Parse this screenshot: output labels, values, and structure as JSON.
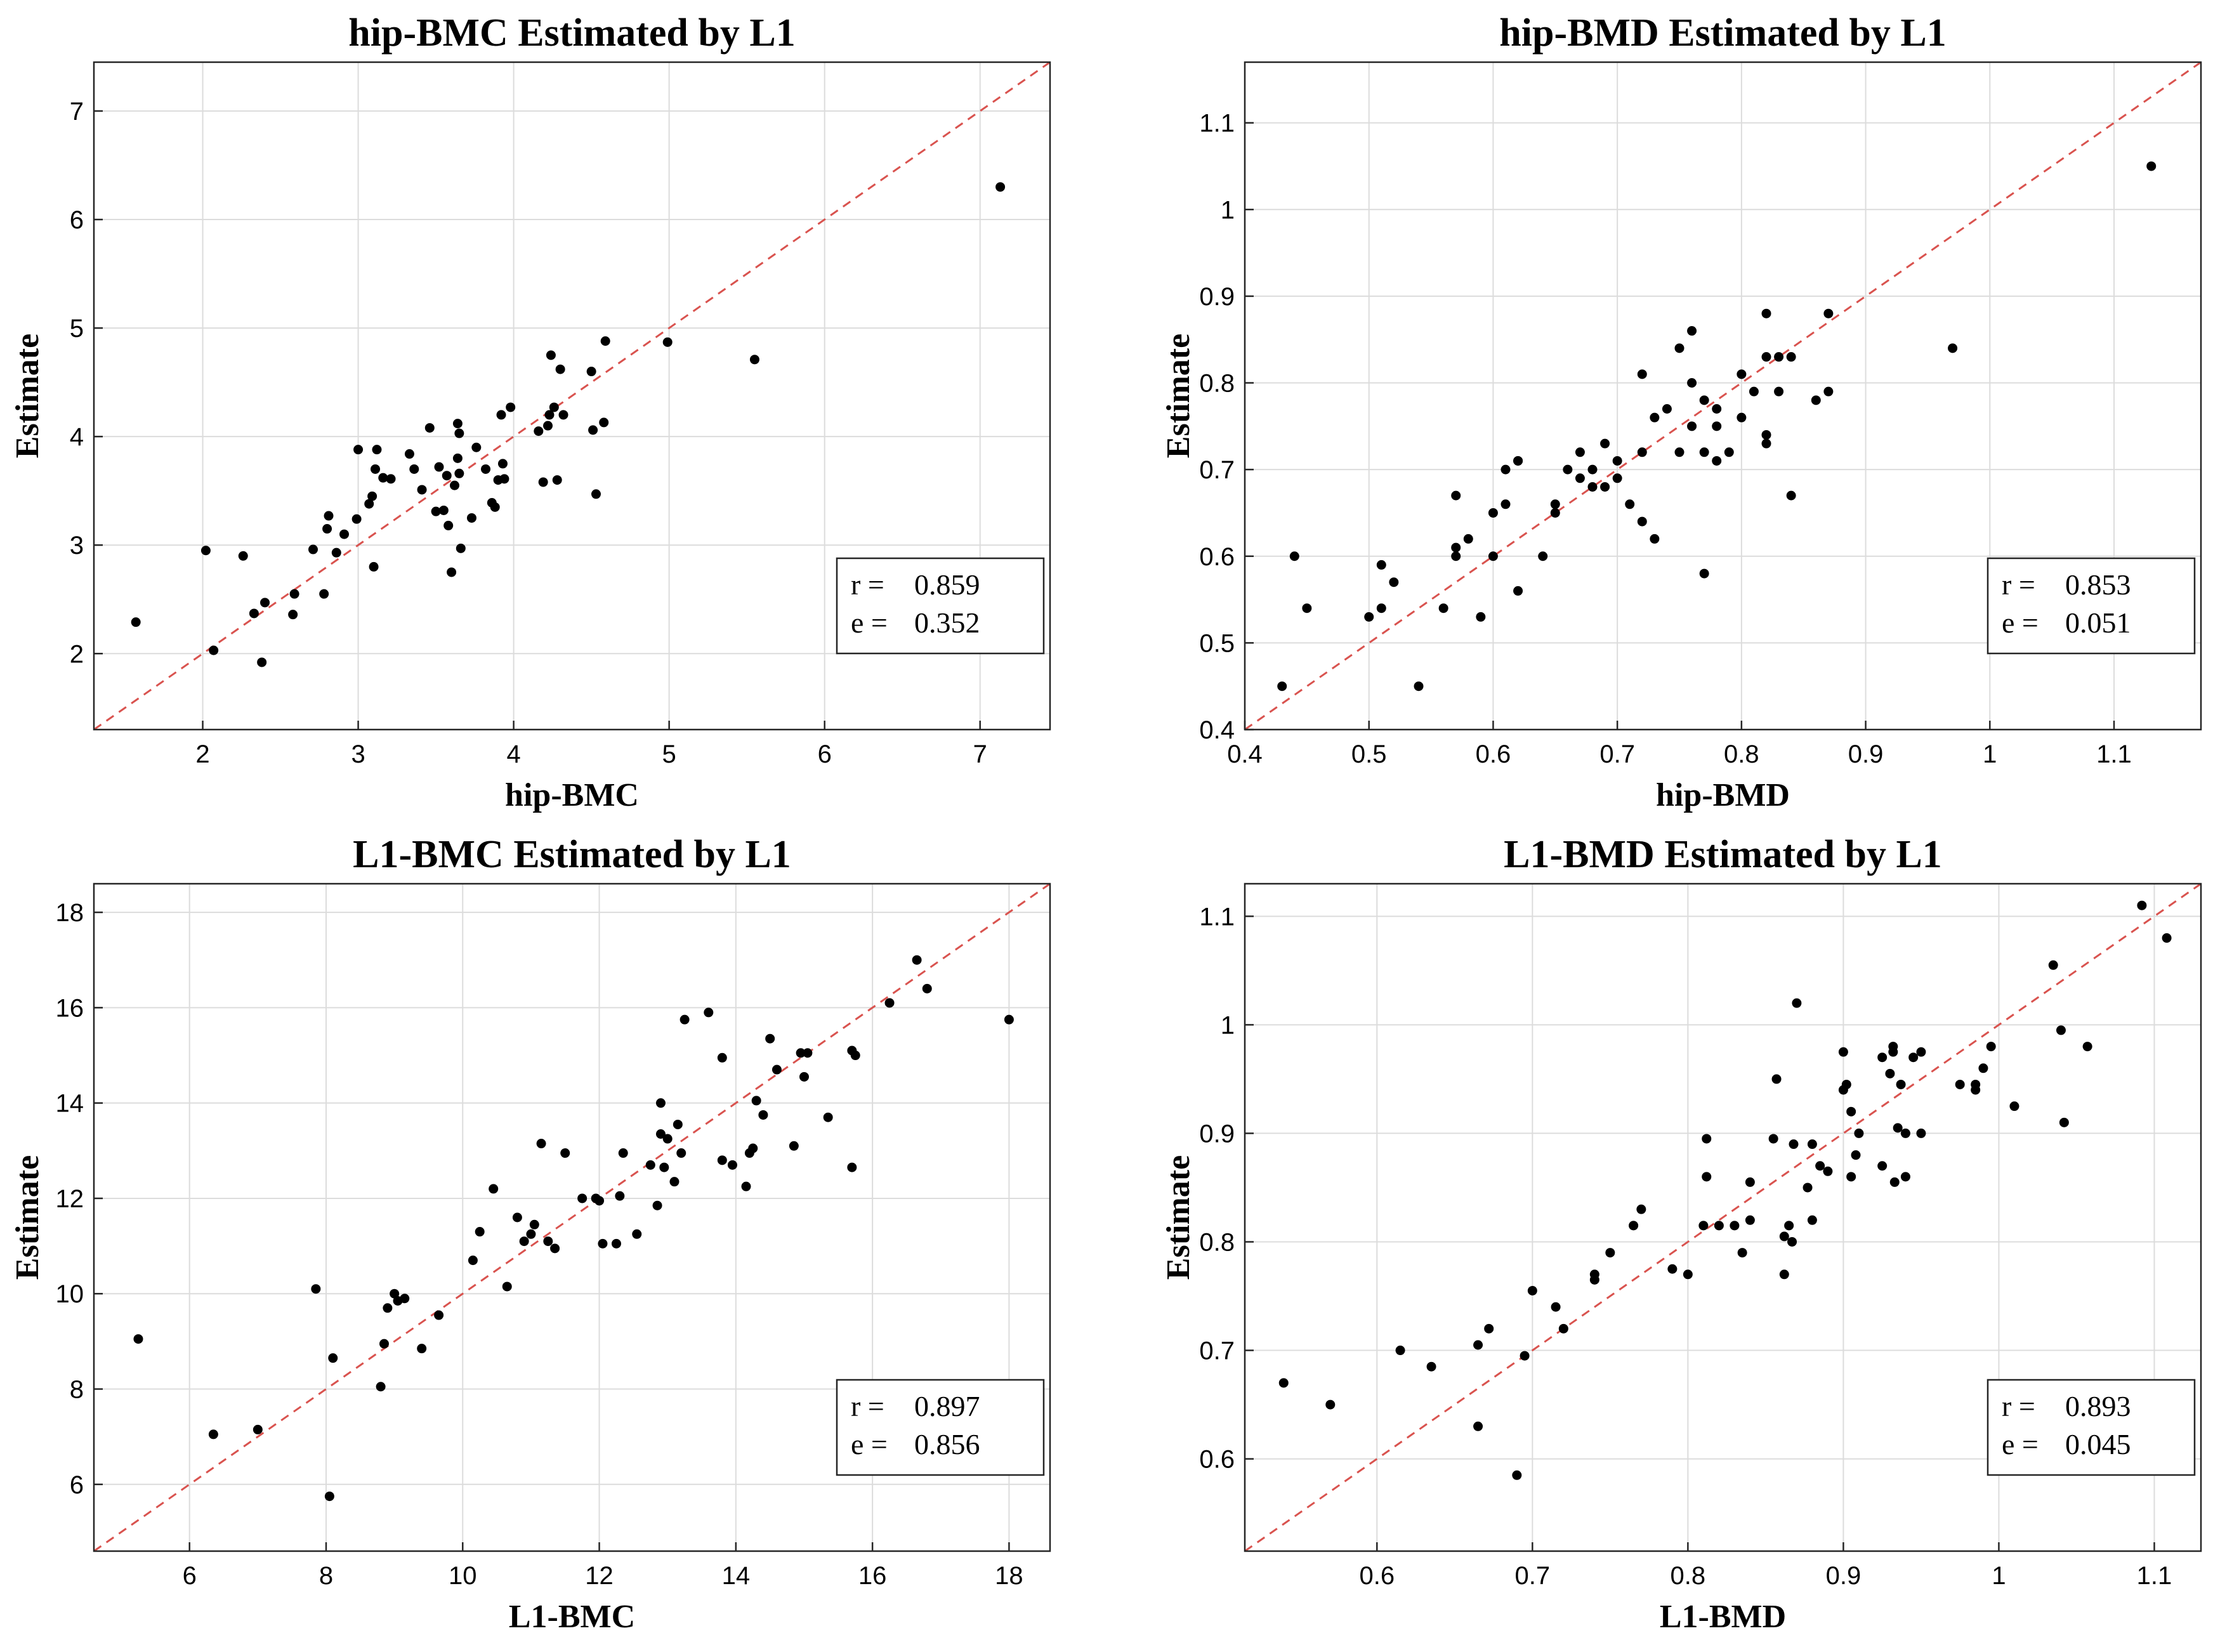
{
  "figure": {
    "background": "#ffffff",
    "point_color": "#000000",
    "refline_color": "#d9534f",
    "grid_color": "#dcdcdc"
  },
  "chart_data": [
    {
      "type": "scatter",
      "title": "hip-BMC Estimated by L1",
      "xlabel": "hip-BMC",
      "ylabel": "Estimate",
      "xlim": [
        1.3,
        7.45
      ],
      "ylim": [
        1.3,
        7.45
      ],
      "xticks": [
        2,
        3,
        4,
        5,
        6,
        7
      ],
      "yticks": [
        2,
        3,
        4,
        5,
        6,
        7
      ],
      "xtick_labels": [
        "2",
        "3",
        "4",
        "5",
        "6",
        "7"
      ],
      "ytick_labels": [
        "2",
        "3",
        "4",
        "5",
        "6",
        "7"
      ],
      "grid": true,
      "reference_line": "y = x",
      "stats": {
        "r_label": "r =",
        "r": "0.859",
        "e_label": "e =",
        "e": "0.352"
      },
      "points": [
        [
          1.57,
          2.29
        ],
        [
          2.02,
          2.95
        ],
        [
          2.07,
          2.03
        ],
        [
          2.26,
          2.9
        ],
        [
          2.33,
          2.37
        ],
        [
          2.38,
          1.92
        ],
        [
          2.4,
          2.47
        ],
        [
          2.58,
          2.36
        ],
        [
          2.59,
          2.55
        ],
        [
          2.71,
          2.96
        ],
        [
          2.78,
          2.55
        ],
        [
          2.8,
          3.15
        ],
        [
          2.81,
          3.27
        ],
        [
          2.86,
          2.93
        ],
        [
          2.91,
          3.1
        ],
        [
          2.99,
          3.24
        ],
        [
          3.0,
          3.88
        ],
        [
          3.07,
          3.38
        ],
        [
          3.09,
          3.45
        ],
        [
          3.1,
          2.8
        ],
        [
          3.11,
          3.7
        ],
        [
          3.12,
          3.88
        ],
        [
          3.16,
          3.62
        ],
        [
          3.21,
          3.61
        ],
        [
          3.33,
          3.84
        ],
        [
          3.36,
          3.7
        ],
        [
          3.41,
          3.51
        ],
        [
          3.46,
          4.08
        ],
        [
          3.5,
          3.31
        ],
        [
          3.52,
          3.72
        ],
        [
          3.55,
          3.32
        ],
        [
          3.57,
          3.64
        ],
        [
          3.58,
          3.18
        ],
        [
          3.6,
          2.75
        ],
        [
          3.62,
          3.55
        ],
        [
          3.64,
          3.8
        ],
        [
          3.64,
          4.12
        ],
        [
          3.65,
          3.66
        ],
        [
          3.65,
          4.03
        ],
        [
          3.66,
          2.97
        ],
        [
          3.73,
          3.25
        ],
        [
          3.76,
          3.9
        ],
        [
          3.82,
          3.7
        ],
        [
          3.86,
          3.39
        ],
        [
          3.88,
          3.35
        ],
        [
          3.9,
          3.6
        ],
        [
          3.92,
          4.2
        ],
        [
          3.93,
          3.75
        ],
        [
          3.94,
          3.61
        ],
        [
          3.98,
          4.27
        ],
        [
          4.16,
          4.05
        ],
        [
          4.19,
          3.58
        ],
        [
          4.22,
          4.1
        ],
        [
          4.23,
          4.2
        ],
        [
          4.24,
          4.75
        ],
        [
          4.26,
          4.27
        ],
        [
          4.28,
          3.6
        ],
        [
          4.3,
          4.62
        ],
        [
          4.32,
          4.2
        ],
        [
          4.5,
          4.6
        ],
        [
          4.51,
          4.06
        ],
        [
          4.53,
          3.47
        ],
        [
          4.58,
          4.13
        ],
        [
          4.59,
          4.88
        ],
        [
          4.99,
          4.87
        ],
        [
          5.55,
          4.71
        ],
        [
          7.13,
          6.3
        ]
      ]
    },
    {
      "type": "scatter",
      "title": "hip-BMD Estimated by L1",
      "xlabel": "hip-BMD",
      "ylabel": "Estimate",
      "xlim": [
        0.4,
        1.17
      ],
      "ylim": [
        0.4,
        1.17
      ],
      "xticks": [
        0.4,
        0.5,
        0.6,
        0.7,
        0.8,
        0.9,
        1.0,
        1.1
      ],
      "yticks": [
        0.4,
        0.5,
        0.6,
        0.7,
        0.8,
        0.9,
        1.0,
        1.1
      ],
      "xtick_labels": [
        "0.4",
        "0.5",
        "0.6",
        "0.7",
        "0.8",
        "0.9",
        "1",
        "1.1"
      ],
      "ytick_labels": [
        "0.4",
        "0.5",
        "0.6",
        "0.7",
        "0.8",
        "0.9",
        "1",
        "1.1"
      ],
      "grid": true,
      "reference_line": "y = x",
      "stats": {
        "r_label": "r =",
        "r": "0.853",
        "e_label": "e =",
        "e": "0.051"
      },
      "points": [
        [
          0.43,
          0.45
        ],
        [
          0.44,
          0.6
        ],
        [
          0.45,
          0.54
        ],
        [
          0.5,
          0.53
        ],
        [
          0.51,
          0.54
        ],
        [
          0.51,
          0.59
        ],
        [
          0.52,
          0.57
        ],
        [
          0.54,
          0.45
        ],
        [
          0.56,
          0.54
        ],
        [
          0.57,
          0.61
        ],
        [
          0.57,
          0.6
        ],
        [
          0.57,
          0.67
        ],
        [
          0.58,
          0.62
        ],
        [
          0.59,
          0.53
        ],
        [
          0.6,
          0.6
        ],
        [
          0.6,
          0.65
        ],
        [
          0.61,
          0.66
        ],
        [
          0.61,
          0.7
        ],
        [
          0.62,
          0.71
        ],
        [
          0.62,
          0.71
        ],
        [
          0.62,
          0.56
        ],
        [
          0.64,
          0.6
        ],
        [
          0.65,
          0.65
        ],
        [
          0.65,
          0.66
        ],
        [
          0.66,
          0.7
        ],
        [
          0.67,
          0.69
        ],
        [
          0.67,
          0.72
        ],
        [
          0.68,
          0.68
        ],
        [
          0.68,
          0.7
        ],
        [
          0.69,
          0.73
        ],
        [
          0.69,
          0.68
        ],
        [
          0.7,
          0.71
        ],
        [
          0.7,
          0.69
        ],
        [
          0.71,
          0.66
        ],
        [
          0.72,
          0.72
        ],
        [
          0.72,
          0.81
        ],
        [
          0.72,
          0.64
        ],
        [
          0.73,
          0.62
        ],
        [
          0.73,
          0.76
        ],
        [
          0.74,
          0.77
        ],
        [
          0.75,
          0.72
        ],
        [
          0.75,
          0.84
        ],
        [
          0.76,
          0.8
        ],
        [
          0.76,
          0.86
        ],
        [
          0.76,
          0.75
        ],
        [
          0.77,
          0.58
        ],
        [
          0.77,
          0.72
        ],
        [
          0.77,
          0.78
        ],
        [
          0.78,
          0.77
        ],
        [
          0.78,
          0.75
        ],
        [
          0.78,
          0.71
        ],
        [
          0.79,
          0.72
        ],
        [
          0.8,
          0.76
        ],
        [
          0.8,
          0.81
        ],
        [
          0.81,
          0.79
        ],
        [
          0.82,
          0.83
        ],
        [
          0.82,
          0.74
        ],
        [
          0.82,
          0.73
        ],
        [
          0.82,
          0.88
        ],
        [
          0.83,
          0.79
        ],
        [
          0.83,
          0.83
        ],
        [
          0.84,
          0.67
        ],
        [
          0.84,
          0.83
        ],
        [
          0.86,
          0.78
        ],
        [
          0.87,
          0.79
        ],
        [
          0.87,
          0.88
        ],
        [
          0.97,
          0.84
        ],
        [
          1.13,
          1.05
        ]
      ]
    },
    {
      "type": "scatter",
      "title": "L1-BMC Estimated by L1",
      "xlabel": "L1-BMC",
      "ylabel": "Estimate",
      "xlim": [
        4.6,
        18.6
      ],
      "ylim": [
        4.6,
        18.6
      ],
      "xticks": [
        6,
        8,
        10,
        12,
        14,
        16,
        18
      ],
      "yticks": [
        6,
        8,
        10,
        12,
        14,
        16,
        18
      ],
      "xtick_labels": [
        "6",
        "8",
        "10",
        "12",
        "14",
        "16",
        "18"
      ],
      "ytick_labels": [
        "6",
        "8",
        "10",
        "12",
        "14",
        "16",
        "18"
      ],
      "grid": true,
      "reference_line": "y = x",
      "stats": {
        "r_label": "r =",
        "r": "0.897",
        "e_label": "e =",
        "e": "0.856"
      },
      "points": [
        [
          5.25,
          9.05
        ],
        [
          6.35,
          7.05
        ],
        [
          7.0,
          7.15
        ],
        [
          7.85,
          10.1
        ],
        [
          8.05,
          5.75
        ],
        [
          8.1,
          8.65
        ],
        [
          8.8,
          8.05
        ],
        [
          8.85,
          8.95
        ],
        [
          8.9,
          9.7
        ],
        [
          9.0,
          10.0
        ],
        [
          9.05,
          9.85
        ],
        [
          9.15,
          9.9
        ],
        [
          9.4,
          8.85
        ],
        [
          9.65,
          9.55
        ],
        [
          10.15,
          10.7
        ],
        [
          10.25,
          11.3
        ],
        [
          10.45,
          12.2
        ],
        [
          10.65,
          10.15
        ],
        [
          10.8,
          11.6
        ],
        [
          10.9,
          11.1
        ],
        [
          11.0,
          11.25
        ],
        [
          11.05,
          11.45
        ],
        [
          11.15,
          13.15
        ],
        [
          11.25,
          11.1
        ],
        [
          11.35,
          10.95
        ],
        [
          11.5,
          12.95
        ],
        [
          11.75,
          12.0
        ],
        [
          11.95,
          12.0
        ],
        [
          12.05,
          11.05
        ],
        [
          12.0,
          11.95
        ],
        [
          12.25,
          11.05
        ],
        [
          12.3,
          12.05
        ],
        [
          12.35,
          12.95
        ],
        [
          12.55,
          11.25
        ],
        [
          12.75,
          12.7
        ],
        [
          12.85,
          11.85
        ],
        [
          12.9,
          13.35
        ],
        [
          12.9,
          14.0
        ],
        [
          12.95,
          12.65
        ],
        [
          13.0,
          13.25
        ],
        [
          13.1,
          12.35
        ],
        [
          13.15,
          13.55
        ],
        [
          13.2,
          12.95
        ],
        [
          13.25,
          15.75
        ],
        [
          13.6,
          15.9
        ],
        [
          13.8,
          14.95
        ],
        [
          13.8,
          12.8
        ],
        [
          13.95,
          12.7
        ],
        [
          14.15,
          12.25
        ],
        [
          14.2,
          12.95
        ],
        [
          14.25,
          13.05
        ],
        [
          14.3,
          14.05
        ],
        [
          14.4,
          13.75
        ],
        [
          14.5,
          15.35
        ],
        [
          14.6,
          14.7
        ],
        [
          14.85,
          13.1
        ],
        [
          14.95,
          15.05
        ],
        [
          15.0,
          14.55
        ],
        [
          15.05,
          15.05
        ],
        [
          15.35,
          13.7
        ],
        [
          15.7,
          15.1
        ],
        [
          15.7,
          12.65
        ],
        [
          15.75,
          15.0
        ],
        [
          16.25,
          16.1
        ],
        [
          16.65,
          17.0
        ],
        [
          16.8,
          16.4
        ],
        [
          18.0,
          15.75
        ]
      ]
    },
    {
      "type": "scatter",
      "title": "L1-BMD Estimated by L1",
      "xlabel": "L1-BMD",
      "ylabel": "Estimate",
      "xlim": [
        0.515,
        1.13
      ],
      "ylim": [
        0.515,
        1.13
      ],
      "xticks": [
        0.6,
        0.7,
        0.8,
        0.9,
        1.0,
        1.1
      ],
      "yticks": [
        0.6,
        0.7,
        0.8,
        0.9,
        1.0,
        1.1
      ],
      "xtick_labels": [
        "0.6",
        "0.7",
        "0.8",
        "0.9",
        "1",
        "1.1"
      ],
      "ytick_labels": [
        "0.6",
        "0.7",
        "0.8",
        "0.9",
        "1",
        "1.1"
      ],
      "grid": true,
      "reference_line": "y = x",
      "stats": {
        "r_label": "r =",
        "r": "0.893",
        "e_label": "e =",
        "e": "0.045"
      },
      "points": [
        [
          0.54,
          0.67
        ],
        [
          0.57,
          0.65
        ],
        [
          0.615,
          0.7
        ],
        [
          0.635,
          0.685
        ],
        [
          0.665,
          0.705
        ],
        [
          0.665,
          0.63
        ],
        [
          0.672,
          0.72
        ],
        [
          0.69,
          0.585
        ],
        [
          0.695,
          0.695
        ],
        [
          0.7,
          0.755
        ],
        [
          0.715,
          0.74
        ],
        [
          0.72,
          0.72
        ],
        [
          0.74,
          0.765
        ],
        [
          0.74,
          0.77
        ],
        [
          0.75,
          0.79
        ],
        [
          0.765,
          0.815
        ],
        [
          0.77,
          0.83
        ],
        [
          0.79,
          0.775
        ],
        [
          0.8,
          0.77
        ],
        [
          0.81,
          0.815
        ],
        [
          0.812,
          0.86
        ],
        [
          0.812,
          0.895
        ],
        [
          0.82,
          0.815
        ],
        [
          0.83,
          0.815
        ],
        [
          0.835,
          0.79
        ],
        [
          0.84,
          0.82
        ],
        [
          0.84,
          0.855
        ],
        [
          0.855,
          0.895
        ],
        [
          0.857,
          0.95
        ],
        [
          0.862,
          0.805
        ],
        [
          0.862,
          0.77
        ],
        [
          0.865,
          0.815
        ],
        [
          0.867,
          0.8
        ],
        [
          0.868,
          0.89
        ],
        [
          0.87,
          1.02
        ],
        [
          0.877,
          0.85
        ],
        [
          0.88,
          0.89
        ],
        [
          0.88,
          0.82
        ],
        [
          0.885,
          0.87
        ],
        [
          0.89,
          0.865
        ],
        [
          0.9,
          0.94
        ],
        [
          0.9,
          0.975
        ],
        [
          0.902,
          0.945
        ],
        [
          0.905,
          0.92
        ],
        [
          0.905,
          0.86
        ],
        [
          0.908,
          0.88
        ],
        [
          0.91,
          0.9
        ],
        [
          0.925,
          0.97
        ],
        [
          0.925,
          0.87
        ],
        [
          0.93,
          0.955
        ],
        [
          0.932,
          0.98
        ],
        [
          0.932,
          0.975
        ],
        [
          0.933,
          0.855
        ],
        [
          0.935,
          0.905
        ],
        [
          0.937,
          0.945
        ],
        [
          0.94,
          0.86
        ],
        [
          0.94,
          0.9
        ],
        [
          0.945,
          0.97
        ],
        [
          0.95,
          0.9
        ],
        [
          0.95,
          0.975
        ],
        [
          0.975,
          0.945
        ],
        [
          0.985,
          0.945
        ],
        [
          0.985,
          0.94
        ],
        [
          0.99,
          0.96
        ],
        [
          0.995,
          0.98
        ],
        [
          1.01,
          0.925
        ],
        [
          1.035,
          1.055
        ],
        [
          1.04,
          0.995
        ],
        [
          1.042,
          0.91
        ],
        [
          1.057,
          0.98
        ],
        [
          1.092,
          1.11
        ],
        [
          1.108,
          1.08
        ]
      ]
    }
  ]
}
